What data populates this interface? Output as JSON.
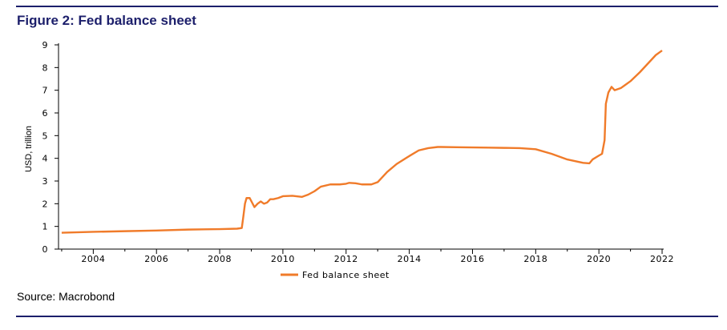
{
  "figure": {
    "title": "Figure 2: Fed balance sheet",
    "source": "Source: Macrobond"
  },
  "colors": {
    "rule": "#1c1f6b",
    "title": "#1c1f6b",
    "series": "#f07b2a"
  },
  "chart_data": {
    "type": "line",
    "title": "",
    "xlabel": "",
    "ylabel": "USD, trillion",
    "xlim": [
      2002.9,
      2022.05
    ],
    "ylim": [
      0,
      9
    ],
    "x_ticks": [
      2004,
      2006,
      2008,
      2010,
      2012,
      2014,
      2016,
      2018,
      2020,
      2022
    ],
    "y_ticks": [
      0,
      1,
      2,
      3,
      4,
      5,
      6,
      7,
      8,
      9
    ],
    "grid": false,
    "legend_position": "bottom-center",
    "series": [
      {
        "name": "Fed balance sheet",
        "x": [
          2003.0,
          2004.0,
          2005.0,
          2006.0,
          2007.0,
          2008.0,
          2008.55,
          2008.7,
          2008.75,
          2008.8,
          2008.85,
          2008.95,
          2009.1,
          2009.2,
          2009.3,
          2009.4,
          2009.5,
          2009.6,
          2009.7,
          2009.85,
          2010.0,
          2010.3,
          2010.6,
          2010.8,
          2011.0,
          2011.2,
          2011.5,
          2011.8,
          2012.0,
          2012.1,
          2012.3,
          2012.5,
          2012.8,
          2013.0,
          2013.3,
          2013.6,
          2014.0,
          2014.3,
          2014.6,
          2014.9,
          2015.0,
          2015.5,
          2016.0,
          2016.5,
          2017.0,
          2017.5,
          2018.0,
          2018.5,
          2019.0,
          2019.5,
          2019.7,
          2019.8,
          2020.0,
          2020.1,
          2020.18,
          2020.22,
          2020.3,
          2020.4,
          2020.5,
          2020.6,
          2020.7,
          2020.8,
          2021.0,
          2021.3,
          2021.6,
          2021.8,
          2022.0
        ],
        "values": [
          0.72,
          0.76,
          0.79,
          0.82,
          0.86,
          0.88,
          0.9,
          0.93,
          1.45,
          2.0,
          2.25,
          2.25,
          1.85,
          2.0,
          2.1,
          2.0,
          2.05,
          2.2,
          2.2,
          2.25,
          2.33,
          2.35,
          2.3,
          2.4,
          2.55,
          2.75,
          2.85,
          2.85,
          2.88,
          2.92,
          2.9,
          2.85,
          2.85,
          2.95,
          3.4,
          3.75,
          4.1,
          4.35,
          4.45,
          4.5,
          4.5,
          4.49,
          4.48,
          4.47,
          4.46,
          4.45,
          4.4,
          4.2,
          3.95,
          3.8,
          3.78,
          3.95,
          4.12,
          4.2,
          4.8,
          6.4,
          6.9,
          7.15,
          7.0,
          7.05,
          7.1,
          7.2,
          7.4,
          7.8,
          8.25,
          8.55,
          8.75
        ]
      }
    ]
  }
}
